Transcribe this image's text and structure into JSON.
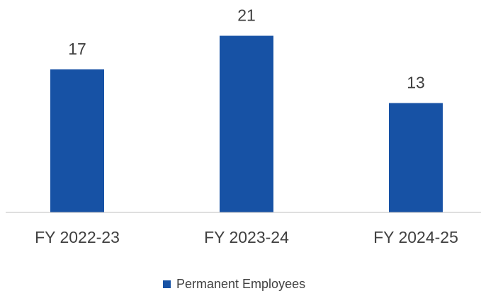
{
  "chart_data": {
    "type": "bar",
    "categories": [
      "FY 2022-23",
      "FY 2023-24",
      "FY 2024-25"
    ],
    "series": [
      {
        "name": "Permanent Employees",
        "color": "#1752a5",
        "values": [
          17,
          21,
          13
        ]
      }
    ],
    "ylim": [
      0,
      25
    ],
    "legend": "bottom"
  }
}
